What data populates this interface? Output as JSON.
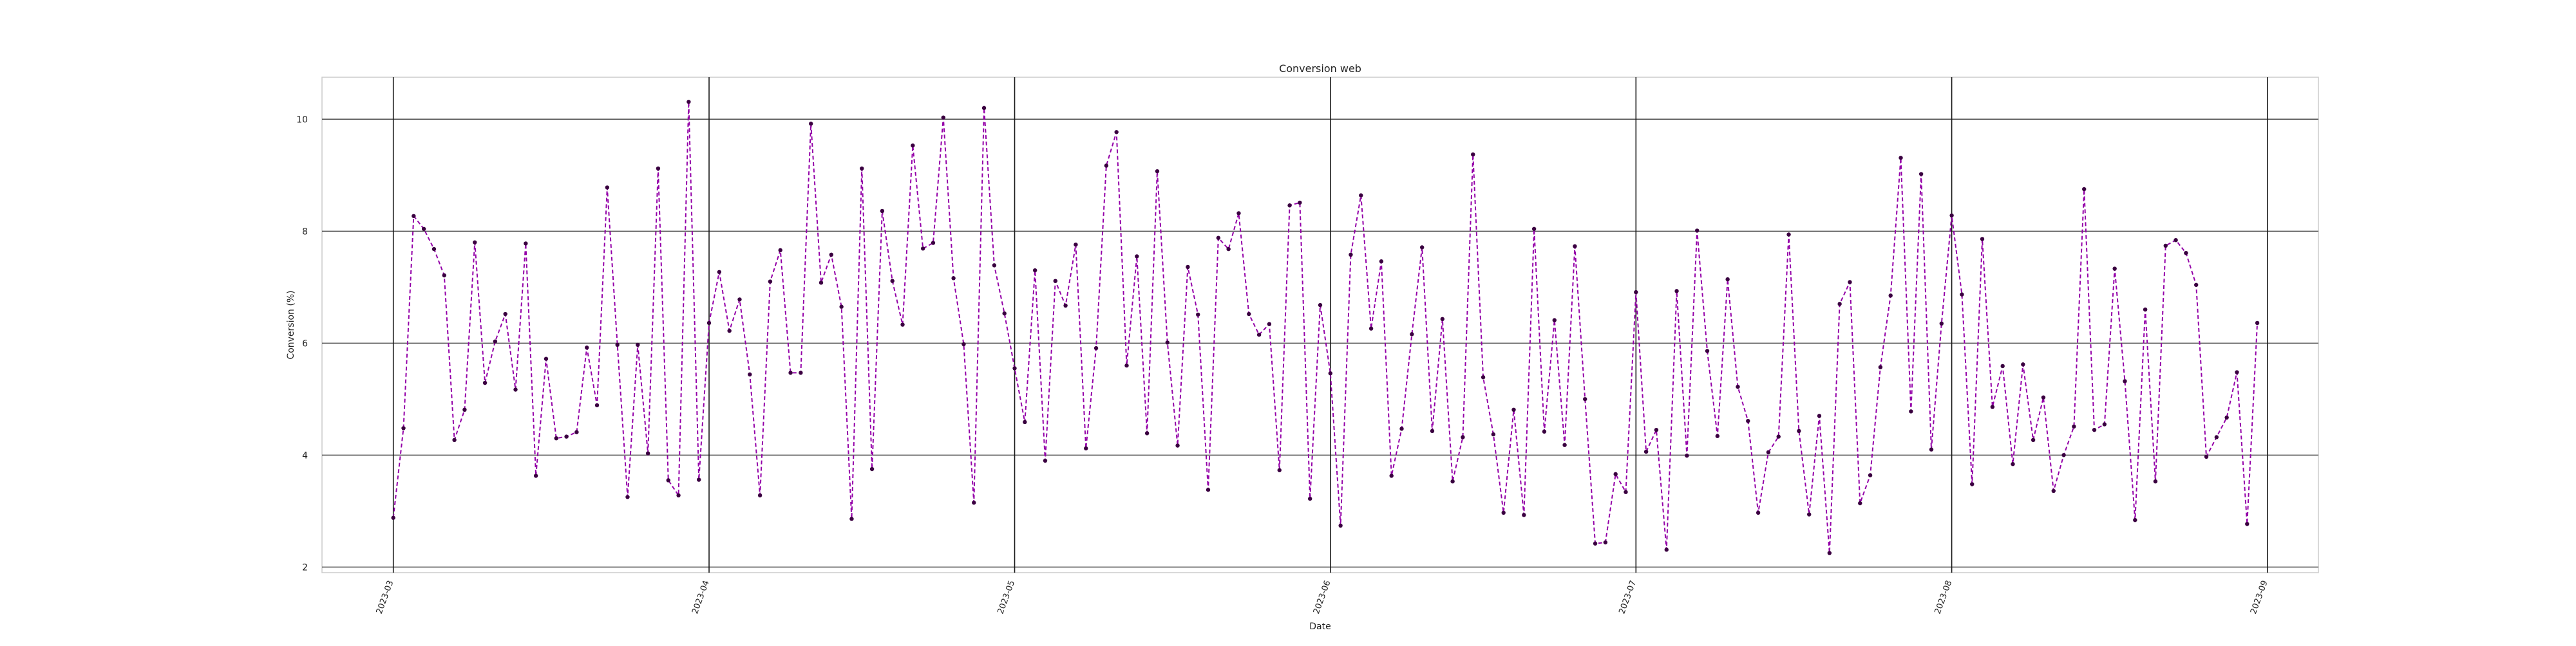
{
  "chart_data": {
    "type": "line",
    "title": "Conversion web",
    "xlabel": "Date",
    "ylabel": "Conversion (%)",
    "xlim": [
      "2023-02-22",
      "2023-09-06"
    ],
    "ylim": [
      1.9,
      10.75
    ],
    "grid": true,
    "legend": "none",
    "x_ticks": [
      "2023-03-01",
      "2023-04-01",
      "2023-05-01",
      "2023-06-01",
      "2023-07-01",
      "2023-08-01",
      "2023-09-01"
    ],
    "x_tick_labels": [
      "2023-03",
      "2023-04",
      "2023-05",
      "2023-06",
      "2023-07",
      "2023-08",
      "2023-09"
    ],
    "y_ticks": [
      2,
      4,
      6,
      8,
      10
    ],
    "y_tick_labels": [
      "2",
      "4",
      "6",
      "8",
      "10"
    ],
    "x_start": "2023-03-01",
    "x_step_days": 1,
    "series": [
      {
        "color": "#9400a8",
        "marker_color": "#3a0040",
        "line_style": "dashed",
        "values": [
          2.88,
          4.48,
          8.27,
          8.04,
          7.68,
          7.21,
          4.27,
          4.81,
          7.8,
          5.29,
          6.03,
          6.52,
          5.17,
          7.78,
          3.63,
          5.72,
          4.3,
          4.33,
          4.41,
          5.92,
          4.89,
          8.78,
          5.97,
          3.25,
          5.97,
          4.03,
          9.12,
          3.55,
          3.28,
          10.31,
          3.56,
          6.36,
          7.27,
          6.22,
          6.78,
          5.44,
          3.28,
          7.1,
          7.66,
          5.47,
          5.47,
          9.92,
          7.08,
          7.58,
          6.65,
          2.86,
          9.12,
          3.75,
          8.36,
          7.11,
          6.33,
          9.53,
          7.69,
          7.79,
          10.03,
          7.16,
          5.98,
          3.15,
          10.2,
          7.39,
          6.53,
          5.55,
          4.59,
          7.3,
          3.9,
          7.11,
          6.67,
          7.76,
          4.12,
          5.91,
          9.17,
          9.77,
          5.6,
          7.55,
          4.39,
          9.07,
          6.01,
          4.17,
          7.36,
          6.51,
          3.38,
          7.88,
          7.68,
          8.32,
          6.52,
          6.15,
          6.34,
          3.73,
          8.46,
          8.51,
          3.22,
          6.68,
          5.46,
          2.74,
          7.58,
          8.64,
          6.26,
          7.46,
          3.63,
          4.47,
          6.16,
          7.71,
          4.43,
          6.43,
          3.53,
          4.32,
          9.37,
          5.39,
          4.37,
          2.97,
          4.81,
          2.93,
          8.04,
          4.42,
          6.41,
          4.18,
          7.73,
          5.0,
          2.42,
          2.44,
          3.66,
          3.34,
          6.91,
          4.06,
          4.45,
          2.31,
          6.93,
          3.99,
          8.01,
          5.86,
          4.34,
          7.14,
          5.22,
          4.61,
          2.97,
          4.05,
          4.33,
          7.94,
          4.43,
          2.94,
          4.7,
          2.25,
          6.7,
          7.09,
          3.14,
          3.64,
          5.57,
          6.85,
          9.31,
          4.78,
          9.02,
          4.1,
          6.35,
          8.28,
          6.87,
          3.48,
          7.86,
          4.86,
          5.59,
          3.84,
          5.62,
          4.27,
          5.03,
          3.36,
          4.0,
          4.51,
          8.75,
          4.45,
          4.55,
          7.33,
          5.32,
          2.84,
          6.6,
          3.53,
          7.74,
          7.84,
          7.61,
          7.04,
          3.97,
          4.32,
          4.67,
          5.48,
          2.77,
          6.36
        ]
      }
    ]
  }
}
